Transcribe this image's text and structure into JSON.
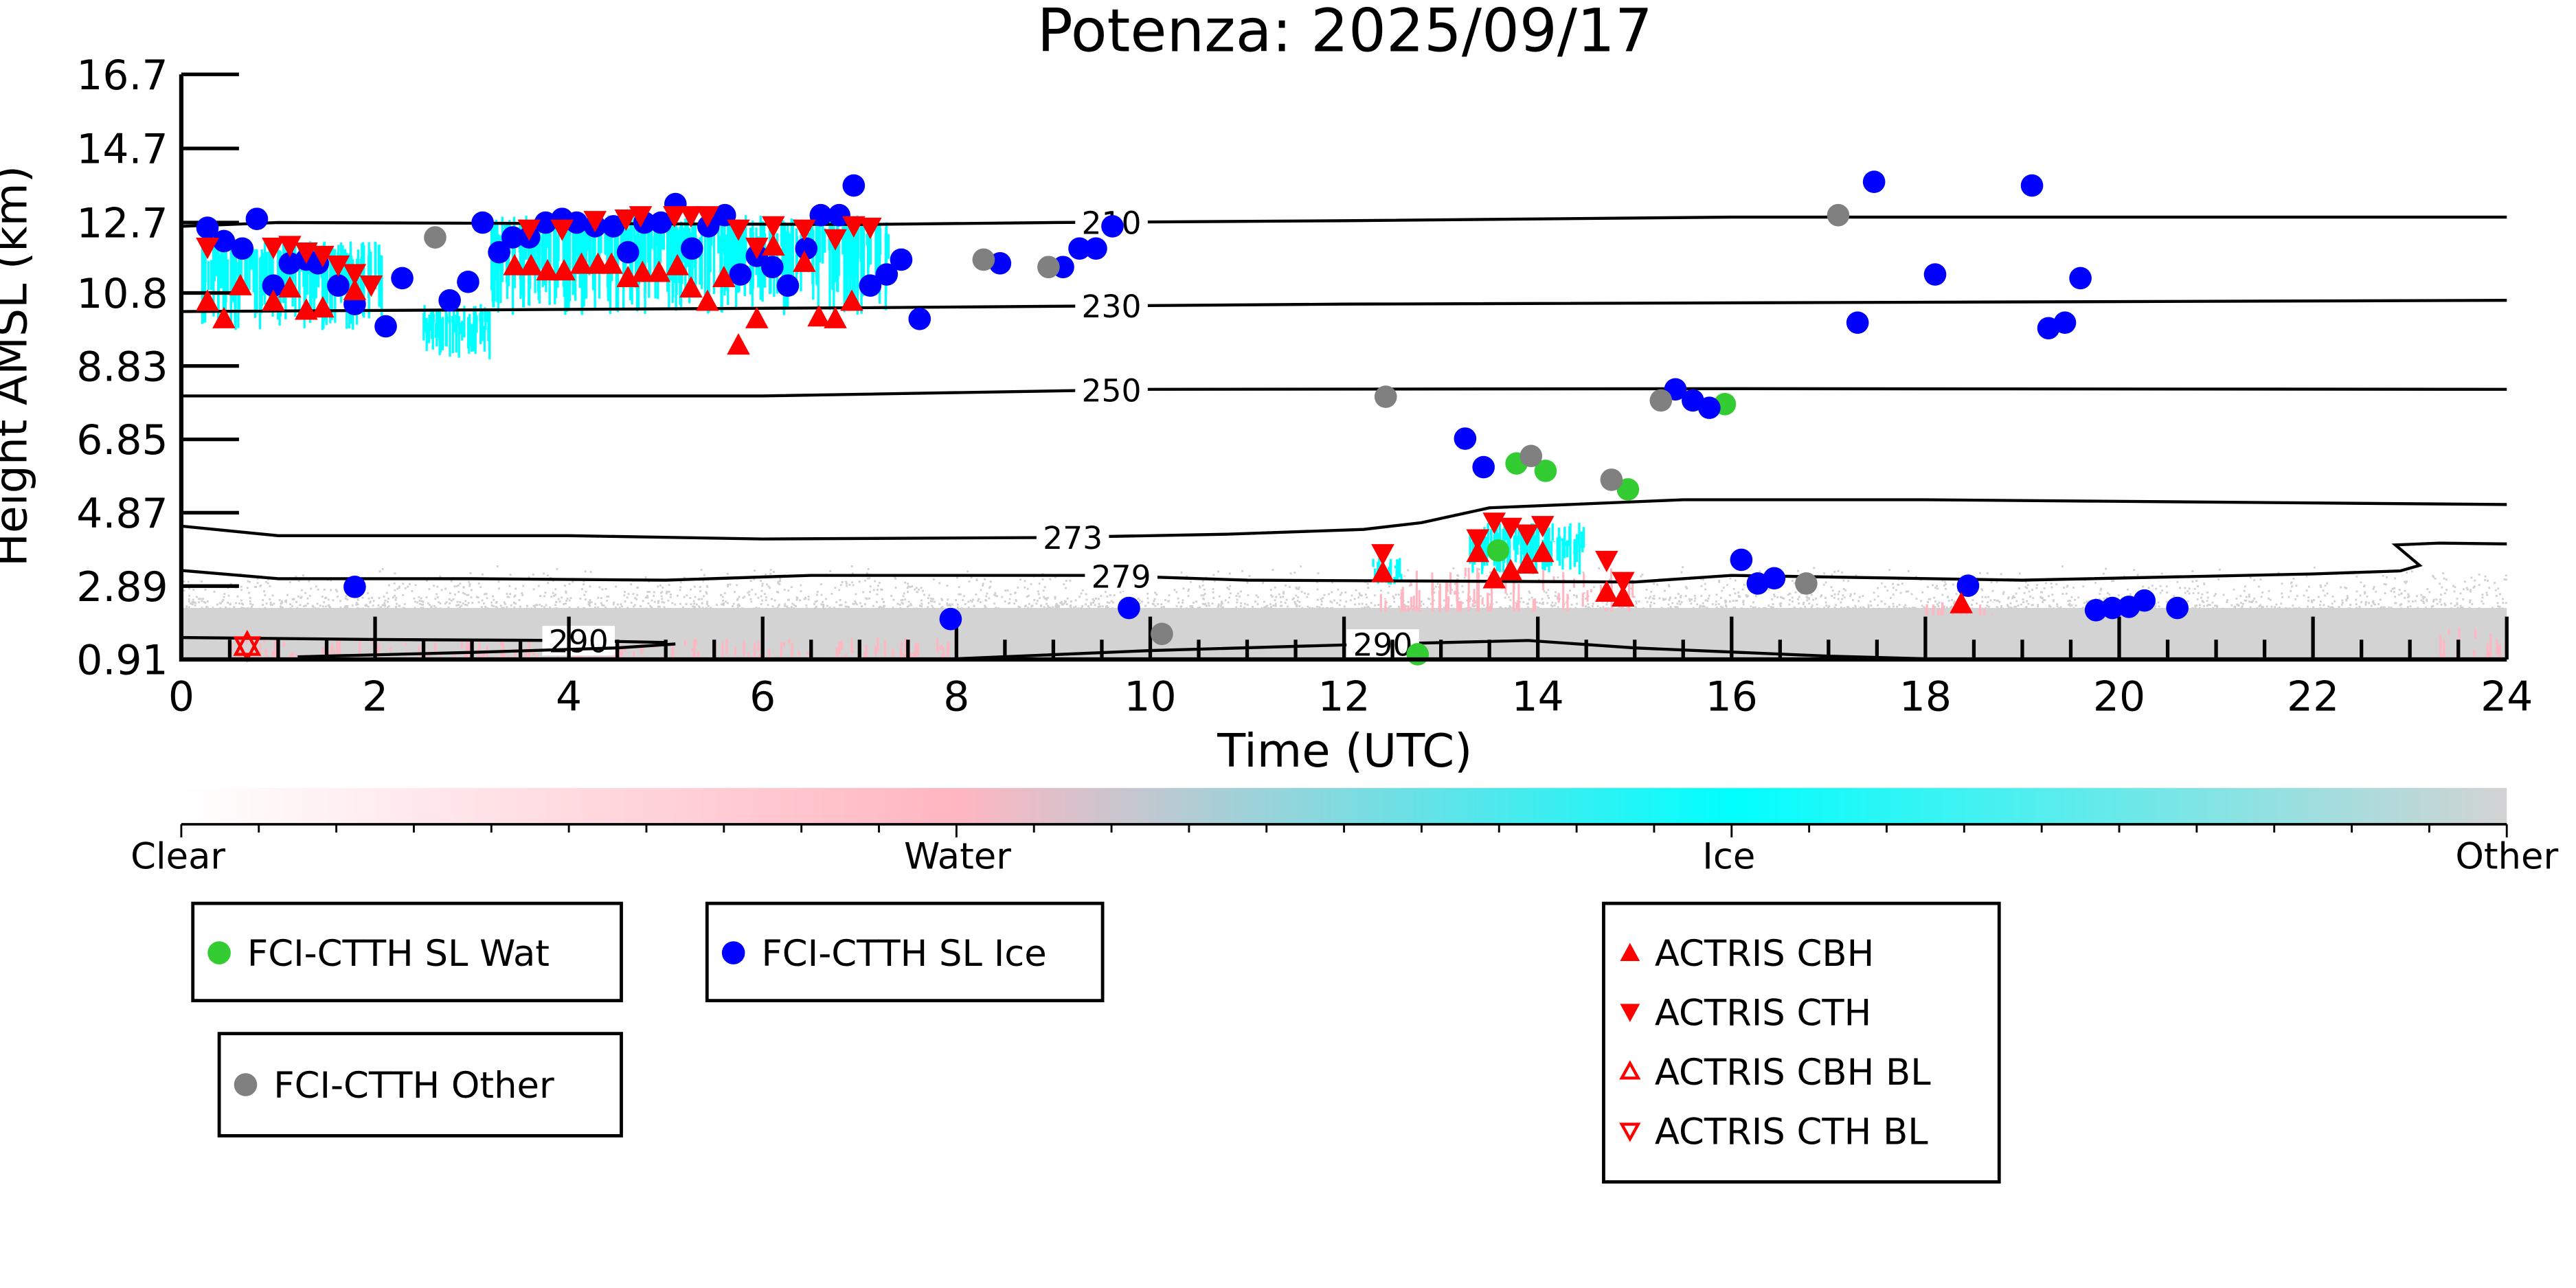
{
  "chart_data": {
    "type": "scatter",
    "title": "Potenza: 2025/09/17",
    "xlabel": "Time (UTC)",
    "ylabel": "Height AMSL (km)",
    "xlim": [
      0,
      24
    ],
    "ylim": [
      0.91,
      16.7
    ],
    "xticks": [
      "0",
      "2",
      "4",
      "6",
      "8",
      "10",
      "12",
      "14",
      "16",
      "18",
      "20",
      "22",
      "24"
    ],
    "yticks": [
      "16.7",
      "14.7",
      "12.7",
      "10.8",
      "8.83",
      "6.85",
      "4.87",
      "2.89",
      "0.91"
    ],
    "ytick_values": [
      16.7,
      14.7,
      12.7,
      10.8,
      8.83,
      6.85,
      4.87,
      2.89,
      0.91
    ],
    "colorbar": {
      "labels": [
        "Clear",
        "Water",
        "Ice",
        "Other"
      ],
      "colors": [
        "#ffffff",
        "#ffb6c1",
        "#00ffff",
        "#d3d3d3"
      ]
    },
    "contours": [
      {
        "label": "210",
        "label_at": 9.6,
        "points": [
          [
            0,
            12.6
          ],
          [
            1,
            12.7
          ],
          [
            7,
            12.65
          ],
          [
            9,
            12.7
          ],
          [
            12,
            12.75
          ],
          [
            16,
            12.85
          ],
          [
            24,
            12.85
          ]
        ]
      },
      {
        "label": "230",
        "label_at": 9.6,
        "points": [
          [
            0,
            10.3
          ],
          [
            7,
            10.4
          ],
          [
            12,
            10.5
          ],
          [
            24,
            10.6
          ]
        ]
      },
      {
        "label": "250",
        "label_at": 9.6,
        "points": [
          [
            0,
            8.02
          ],
          [
            6,
            8.02
          ],
          [
            10,
            8.2
          ],
          [
            16,
            8.22
          ],
          [
            24,
            8.2
          ]
        ]
      },
      {
        "label": "273",
        "label_at": 9.2,
        "points": [
          [
            0,
            4.51
          ],
          [
            1,
            4.25
          ],
          [
            4,
            4.25
          ],
          [
            6,
            4.16
          ],
          [
            9,
            4.2
          ],
          [
            10.8,
            4.29
          ],
          [
            12.2,
            4.42
          ],
          [
            12.8,
            4.6
          ],
          [
            13.5,
            5.0
          ],
          [
            15.5,
            5.22
          ],
          [
            18,
            5.22
          ],
          [
            24,
            5.09
          ]
        ]
      },
      {
        "label": "279",
        "label_at": 9.7,
        "points": [
          [
            0,
            3.31
          ],
          [
            1,
            3.09
          ],
          [
            3,
            3.09
          ],
          [
            5,
            3.05
          ],
          [
            6.5,
            3.18
          ],
          [
            9.5,
            3.18
          ],
          [
            11,
            3.05
          ],
          [
            15,
            3.0
          ],
          [
            16,
            3.18
          ],
          [
            19,
            3.05
          ],
          [
            22,
            3.22
          ],
          [
            22.9,
            3.3
          ],
          [
            23.1,
            3.45
          ],
          [
            22.85,
            4.0
          ],
          [
            23.3,
            4.05
          ],
          [
            24,
            4.03
          ]
        ]
      },
      {
        "label": "290",
        "label_at": 4.1,
        "points": [
          [
            0,
            1.5
          ],
          [
            2,
            1.45
          ],
          [
            4,
            1.42
          ],
          [
            5,
            1.37
          ]
        ]
      },
      {
        "label": "",
        "label_at": null,
        "points": [
          [
            1.2,
            0.98
          ],
          [
            3,
            1.1
          ],
          [
            4.5,
            1.22
          ],
          [
            5.1,
            1.33
          ]
        ]
      },
      {
        "label": "290",
        "label_at": 12.4,
        "points": [
          [
            8,
            0.93
          ],
          [
            10,
            1.15
          ],
          [
            12,
            1.3
          ],
          [
            13.9,
            1.42
          ],
          [
            15,
            1.22
          ],
          [
            17,
            1.0
          ],
          [
            18,
            0.93
          ]
        ]
      }
    ],
    "mask_regions": {
      "ice": [
        [
          0.2,
          2.1,
          9.8,
          12.2
        ],
        [
          3.2,
          7.3,
          10.2,
          12.9
        ],
        [
          13.3,
          14.5,
          3.2,
          4.6
        ],
        [
          2.5,
          3.2,
          9.0,
          10.5
        ],
        [
          12.3,
          12.6,
          2.9,
          3.7
        ]
      ],
      "water": [
        [
          0.5,
          8,
          0.91,
          1.5
        ],
        [
          12.3,
          15,
          2.2,
          3.4
        ],
        [
          18,
          18.7,
          2.1,
          2.5
        ],
        [
          23.3,
          24,
          0.91,
          1.8
        ]
      ],
      "other": [
        [
          0,
          24,
          0.91,
          2.3
        ]
      ]
    },
    "series": [
      {
        "name": "FCI-CTTH SL Wat",
        "marker": "circle",
        "color": "#33cc33",
        "points": [
          [
            13.78,
            6.2
          ],
          [
            14.08,
            6.0
          ],
          [
            13.59,
            3.85
          ],
          [
            14.93,
            5.5
          ],
          [
            15.93,
            7.8
          ],
          [
            12.76,
            1.05
          ]
        ]
      },
      {
        "name": "FCI-CTTH SL Ice",
        "marker": "circle",
        "color": "#0000ff",
        "points": [
          [
            0.27,
            12.56
          ],
          [
            0.44,
            12.2
          ],
          [
            0.63,
            12.0
          ],
          [
            0.78,
            12.8
          ],
          [
            0.95,
            11.0
          ],
          [
            1.12,
            11.6
          ],
          [
            1.29,
            11.7
          ],
          [
            1.41,
            11.6
          ],
          [
            1.62,
            11.0
          ],
          [
            1.79,
            10.5
          ],
          [
            1.79,
            2.87
          ],
          [
            2.11,
            9.9
          ],
          [
            2.28,
            11.2
          ],
          [
            2.77,
            10.6
          ],
          [
            2.96,
            11.1
          ],
          [
            3.11,
            12.7
          ],
          [
            3.28,
            11.9
          ],
          [
            3.42,
            12.3
          ],
          [
            3.59,
            12.3
          ],
          [
            3.76,
            12.7
          ],
          [
            3.93,
            12.8
          ],
          [
            4.08,
            12.7
          ],
          [
            4.27,
            12.6
          ],
          [
            4.46,
            12.6
          ],
          [
            4.61,
            11.9
          ],
          [
            4.78,
            12.7
          ],
          [
            4.95,
            12.7
          ],
          [
            5.1,
            13.2
          ],
          [
            5.27,
            12.0
          ],
          [
            5.44,
            12.6
          ],
          [
            5.61,
            12.9
          ],
          [
            5.77,
            11.3
          ],
          [
            5.94,
            11.8
          ],
          [
            6.1,
            11.5
          ],
          [
            6.26,
            11.0
          ],
          [
            6.45,
            12.0
          ],
          [
            6.6,
            12.9
          ],
          [
            6.79,
            12.9
          ],
          [
            6.94,
            13.7
          ],
          [
            7.11,
            11.0
          ],
          [
            7.28,
            11.3
          ],
          [
            7.43,
            11.7
          ],
          [
            7.62,
            10.1
          ],
          [
            7.94,
            2.0
          ],
          [
            8.45,
            11.6
          ],
          [
            9.1,
            11.5
          ],
          [
            9.27,
            12.0
          ],
          [
            9.44,
            12.0
          ],
          [
            9.61,
            12.6
          ],
          [
            9.78,
            2.3
          ],
          [
            13.25,
            6.87
          ],
          [
            13.44,
            6.1
          ],
          [
            15.42,
            8.2
          ],
          [
            15.6,
            7.9
          ],
          [
            15.77,
            7.7
          ],
          [
            16.1,
            3.6
          ],
          [
            16.27,
            2.96
          ],
          [
            16.44,
            3.1
          ],
          [
            17.3,
            10.0
          ],
          [
            17.47,
            13.8
          ],
          [
            18.1,
            11.3
          ],
          [
            18.44,
            2.9
          ],
          [
            19.1,
            13.7
          ],
          [
            19.27,
            9.85
          ],
          [
            19.44,
            10.0
          ],
          [
            19.6,
            11.2
          ],
          [
            19.76,
            2.24
          ],
          [
            19.93,
            2.3
          ],
          [
            20.1,
            2.33
          ],
          [
            20.26,
            2.5
          ],
          [
            20.6,
            2.3
          ]
        ]
      },
      {
        "name": "FCI-CTTH Other",
        "marker": "circle",
        "color": "#808080",
        "points": [
          [
            2.62,
            12.3
          ],
          [
            8.28,
            11.7
          ],
          [
            8.95,
            11.5
          ],
          [
            10.12,
            1.6
          ],
          [
            12.43,
            8.0
          ],
          [
            13.93,
            6.4
          ],
          [
            14.76,
            5.76
          ],
          [
            15.27,
            7.9
          ],
          [
            16.77,
            2.96
          ],
          [
            17.1,
            12.9
          ]
        ]
      },
      {
        "name": "ACTRIS CBH",
        "marker": "triangle-up",
        "color": "#ff0000",
        "points": [
          [
            0.27,
            10.54
          ],
          [
            0.44,
            10.07
          ],
          [
            0.61,
            10.96
          ],
          [
            0.95,
            10.54
          ],
          [
            1.12,
            10.9
          ],
          [
            1.29,
            10.3
          ],
          [
            1.46,
            10.36
          ],
          [
            1.79,
            10.83
          ],
          [
            3.44,
            11.5
          ],
          [
            3.61,
            11.5
          ],
          [
            3.78,
            11.36
          ],
          [
            3.95,
            11.36
          ],
          [
            4.13,
            11.54
          ],
          [
            4.3,
            11.54
          ],
          [
            4.44,
            11.54
          ],
          [
            4.61,
            11.18
          ],
          [
            4.76,
            11.32
          ],
          [
            4.93,
            11.32
          ],
          [
            5.12,
            11.5
          ],
          [
            5.26,
            10.9
          ],
          [
            5.43,
            10.54
          ],
          [
            5.6,
            11.18
          ],
          [
            5.75,
            9.36
          ],
          [
            5.94,
            10.07
          ],
          [
            6.11,
            12.03
          ],
          [
            6.43,
            11.59
          ],
          [
            6.58,
            10.12
          ],
          [
            6.75,
            10.07
          ],
          [
            6.92,
            10.54
          ],
          [
            12.4,
            3.22
          ],
          [
            13.38,
            3.76
          ],
          [
            13.55,
            3.05
          ],
          [
            13.72,
            3.27
          ],
          [
            13.89,
            3.45
          ],
          [
            14.05,
            3.76
          ],
          [
            14.71,
            2.69
          ],
          [
            14.88,
            2.56
          ],
          [
            18.37,
            2.38
          ]
        ]
      },
      {
        "name": "ACTRIS CTH",
        "marker": "triangle-down",
        "color": "#ff0000",
        "points": [
          [
            0.27,
            12.07
          ],
          [
            0.95,
            12.07
          ],
          [
            1.12,
            12.12
          ],
          [
            1.29,
            11.94
          ],
          [
            1.46,
            11.85
          ],
          [
            1.62,
            11.59
          ],
          [
            1.79,
            11.36
          ],
          [
            1.96,
            11.05
          ],
          [
            3.59,
            12.56
          ],
          [
            3.93,
            12.56
          ],
          [
            4.27,
            12.79
          ],
          [
            4.59,
            12.83
          ],
          [
            4.74,
            12.92
          ],
          [
            5.09,
            12.92
          ],
          [
            5.26,
            12.92
          ],
          [
            5.43,
            12.92
          ],
          [
            5.75,
            12.56
          ],
          [
            5.94,
            12.07
          ],
          [
            6.11,
            12.65
          ],
          [
            6.43,
            12.56
          ],
          [
            6.75,
            12.3
          ],
          [
            6.94,
            12.65
          ],
          [
            7.11,
            12.61
          ],
          [
            12.4,
            3.8
          ],
          [
            13.38,
            4.2
          ],
          [
            13.55,
            4.65
          ],
          [
            13.72,
            4.51
          ],
          [
            13.89,
            4.33
          ],
          [
            14.05,
            4.56
          ],
          [
            14.71,
            3.62
          ],
          [
            14.88,
            3.05
          ]
        ]
      },
      {
        "name": "ACTRIS CBH BL",
        "marker": "triangle-up-open",
        "color": "#ff0000",
        "points": [
          [
            0.68,
            1.27
          ]
        ]
      },
      {
        "name": "ACTRIS CTH BL",
        "marker": "triangle-down-open",
        "color": "#ff0000",
        "points": [
          [
            0.68,
            1.27
          ]
        ]
      }
    ],
    "legends": [
      {
        "entries": [
          0
        ]
      },
      {
        "entries": [
          1
        ]
      },
      {
        "entries": [
          2
        ]
      },
      {
        "entries": [
          3,
          4,
          5,
          6
        ]
      }
    ]
  }
}
